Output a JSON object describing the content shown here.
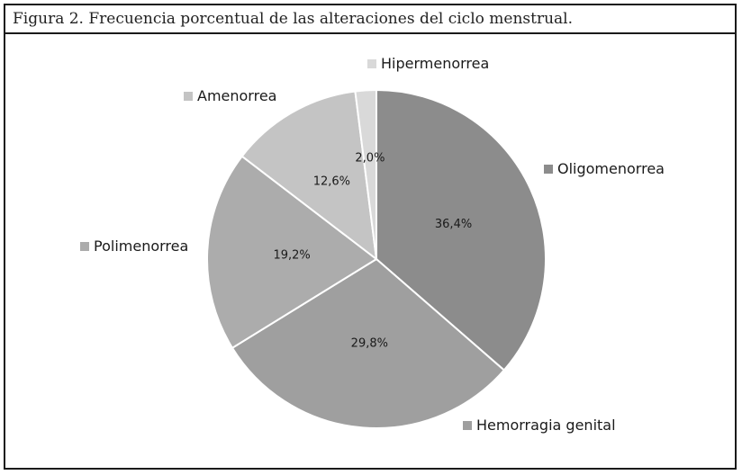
{
  "figure": {
    "caption": "Figura 2. Frecuencia porcentual de las alteraciones del ciclo menstrual."
  },
  "chart_data": {
    "type": "pie",
    "title": "",
    "start_angle_deg": 0,
    "direction": "clockwise",
    "slices": [
      {
        "label": "Oligomenorrea",
        "value": 36.4,
        "value_label": "36,4%",
        "color": "#8c8c8c"
      },
      {
        "label": "Hemorragia genital",
        "value": 29.8,
        "value_label": "29,8%",
        "color": "#9f9f9f"
      },
      {
        "label": "Polimenorrea",
        "value": 19.2,
        "value_label": "19,2%",
        "color": "#acacac"
      },
      {
        "label": "Amenorrea",
        "value": 12.6,
        "value_label": "12,6%",
        "color": "#c4c4c4"
      },
      {
        "label": "Hipermenorrea",
        "value": 2.0,
        "value_label": "2,0%",
        "color": "#d9d9d9"
      }
    ],
    "legend_placement": "around-pie"
  }
}
